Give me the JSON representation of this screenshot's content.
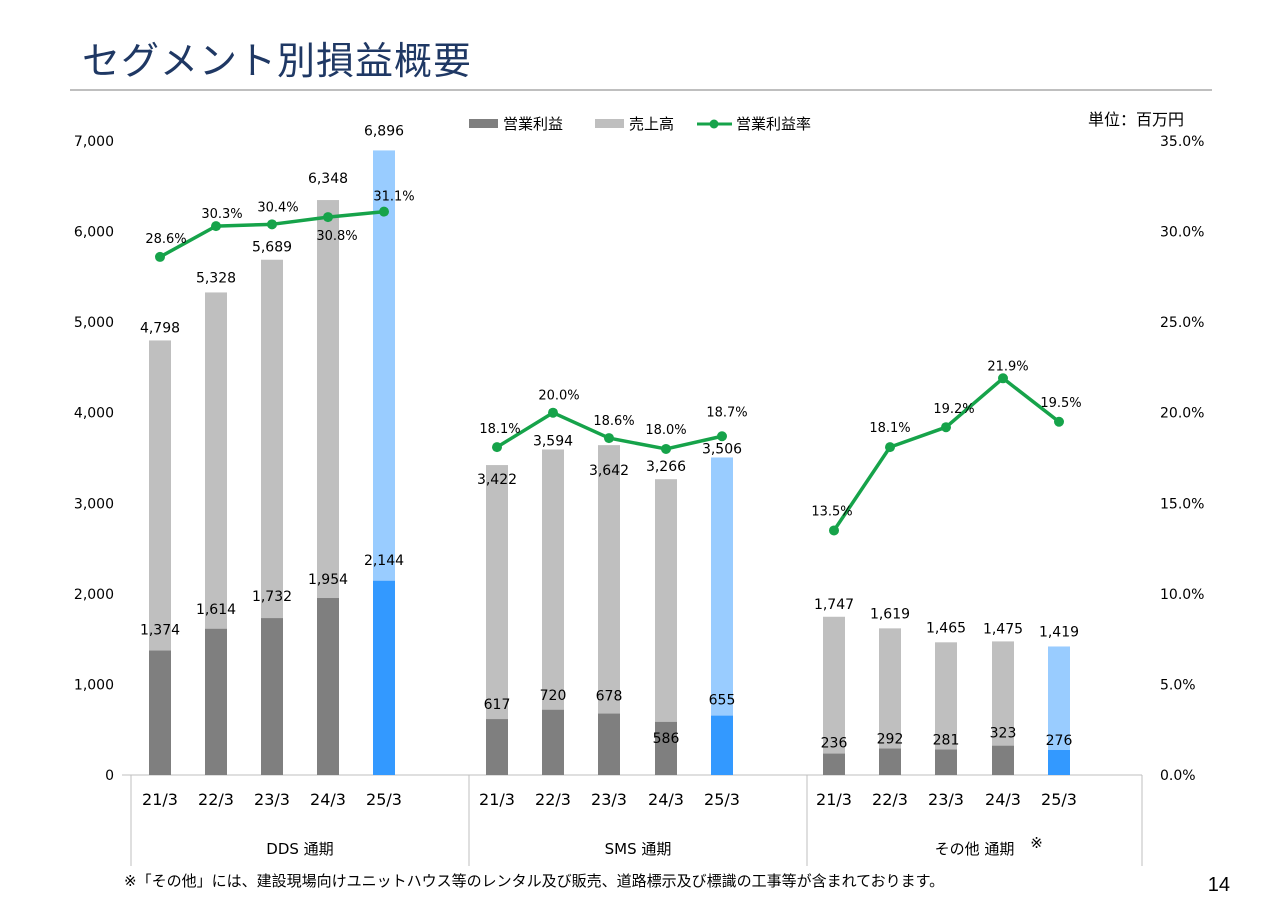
{
  "slide": {
    "title": "セグメント別損益概要",
    "unit_label": "単位：百万円",
    "footnote": "※「その他」には、建設現場向けユニットハウス等のレンタル及び販売、道路標示及び標識の工事等が含まれております。",
    "page_number": "14"
  },
  "colors": {
    "op_profit": "#7f7f7f",
    "sales": "#bfbfbf",
    "op_profit_forecast": "#3399ff",
    "sales_forecast": "#99ccff",
    "margin_line": "#16a34a",
    "title": "#1f3864"
  },
  "chart_data": {
    "type": "bar",
    "legend": [
      "営業利益",
      "売上高",
      "営業利益率"
    ],
    "legend_position": "top-center",
    "y_left_ticks": [
      "0",
      "1,000",
      "2,000",
      "3,000",
      "4,000",
      "5,000",
      "6,000",
      "7,000"
    ],
    "y_right_ticks": [
      "0.0%",
      "5.0%",
      "10.0%",
      "15.0%",
      "20.0%",
      "25.0%",
      "30.0%",
      "35.0%"
    ],
    "ylim_left": [
      0,
      7000
    ],
    "ylim_right": [
      0,
      35
    ],
    "groups": [
      {
        "name": "DDS 通期",
        "note_mark": "",
        "categories": [
          "21/3",
          "22/3",
          "23/3",
          "24/3",
          "25/3"
        ],
        "sales": [
          4798,
          5328,
          5689,
          6348,
          6896
        ],
        "sales_labels": [
          "4,798",
          "5,328",
          "5,689",
          "6,348",
          "6,896"
        ],
        "op_profit": [
          1374,
          1614,
          1732,
          1954,
          2144
        ],
        "op_profit_labels": [
          "1,374",
          "1,614",
          "1,732",
          "1,954",
          "2,144"
        ],
        "margin": [
          28.6,
          30.3,
          30.4,
          30.8,
          31.1
        ],
        "margin_labels": [
          "28.6%",
          "30.3%",
          "30.4%",
          "30.8%",
          "31.1%"
        ],
        "forecast_index": 4
      },
      {
        "name": "SMS 通期",
        "note_mark": "",
        "categories": [
          "21/3",
          "22/3",
          "23/3",
          "24/3",
          "25/3"
        ],
        "sales": [
          3422,
          3594,
          3642,
          3266,
          3506
        ],
        "sales_labels": [
          "3,422",
          "3,594",
          "3,642",
          "3,266",
          "3,506"
        ],
        "op_profit": [
          617,
          720,
          678,
          586,
          655
        ],
        "op_profit_labels": [
          "617",
          "720",
          "678",
          "586",
          "655"
        ],
        "margin": [
          18.1,
          20.0,
          18.6,
          18.0,
          18.7
        ],
        "margin_labels": [
          "18.1%",
          "20.0%",
          "18.6%",
          "18.0%",
          "18.7%"
        ],
        "forecast_index": 4
      },
      {
        "name": "その他 通期",
        "note_mark": "※",
        "categories": [
          "21/3",
          "22/3",
          "23/3",
          "24/3",
          "25/3"
        ],
        "sales": [
          1747,
          1619,
          1465,
          1475,
          1419
        ],
        "sales_labels": [
          "1,747",
          "1,619",
          "1,465",
          "1,475",
          "1,419"
        ],
        "op_profit": [
          236,
          292,
          281,
          323,
          276
        ],
        "op_profit_labels": [
          "236",
          "292",
          "281",
          "323",
          "276"
        ],
        "margin": [
          13.5,
          18.1,
          19.2,
          21.9,
          19.5
        ],
        "margin_labels": [
          "13.5%",
          "18.1%",
          "19.2%",
          "21.9%",
          "19.5%"
        ],
        "forecast_index": 4
      }
    ]
  }
}
